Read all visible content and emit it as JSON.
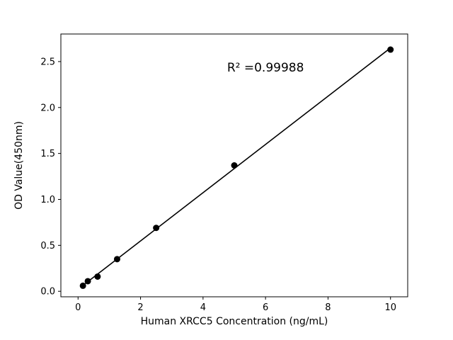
{
  "chart_data": {
    "type": "scatter",
    "title": "",
    "xlabel": "Human XRCC5 Concentration (ng/mL)",
    "ylabel": "OD Value(450nm)",
    "x": [
      0.156,
      0.3125,
      0.625,
      1.25,
      2.5,
      5,
      10
    ],
    "y": [
      0.06,
      0.11,
      0.16,
      0.35,
      0.69,
      1.37,
      2.63
    ],
    "fit_line": true,
    "xlim": [
      -0.55,
      10.55
    ],
    "ylim": [
      -0.06,
      2.8
    ],
    "xticks": [
      0,
      2,
      4,
      6,
      8,
      10
    ],
    "ytick_labels": [
      "0.0",
      "0.5",
      "1.0",
      "1.5",
      "2.0",
      "2.5"
    ],
    "yticks": [
      0.0,
      0.5,
      1.0,
      1.5,
      2.0,
      2.5
    ],
    "annotation": {
      "text": "R² =0.99988",
      "x": 6.0,
      "y": 2.39
    },
    "grid": false,
    "legend": "none",
    "marker_color": "#000000",
    "line_color": "#000000",
    "background_color": "#ffffff"
  }
}
